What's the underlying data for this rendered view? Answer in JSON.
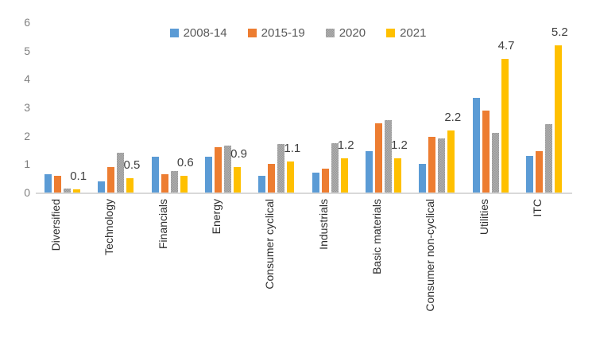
{
  "chart_data": {
    "type": "bar",
    "title": "",
    "xlabel": "",
    "ylabel": "",
    "categories": [
      "Diversified",
      "Technology",
      "Financials",
      "Energy",
      "Consumer cyclical",
      "Industrials",
      "Basic materials",
      "Consumer non-cyclical",
      "Utilities",
      "ITC"
    ],
    "series": [
      {
        "name": "2008-14",
        "color": "#5B9BD5",
        "pattern": false,
        "values": [
          0.65,
          0.4,
          1.25,
          1.25,
          0.6,
          0.7,
          1.45,
          1.0,
          3.35,
          1.3
        ]
      },
      {
        "name": "2015-19",
        "color": "#ED7D31",
        "pattern": false,
        "values": [
          0.6,
          0.9,
          0.65,
          1.6,
          1.0,
          0.85,
          2.45,
          1.95,
          2.9,
          1.45
        ]
      },
      {
        "name": "2020",
        "color": "#A5A5A5",
        "pattern": true,
        "values": [
          0.15,
          1.4,
          0.75,
          1.65,
          1.7,
          1.75,
          2.55,
          1.9,
          2.1,
          2.4
        ]
      },
      {
        "name": "2021",
        "color": "#FFC000",
        "pattern": false,
        "values": [
          0.1,
          0.5,
          0.6,
          0.9,
          1.1,
          1.2,
          1.2,
          2.2,
          4.7,
          5.2
        ],
        "data_labels": [
          "0.1",
          "0.5",
          "0.6",
          "0.9",
          "1.1",
          "1.2",
          "1.2",
          "2.2",
          "4.7",
          "5.2"
        ]
      }
    ],
    "ylim": [
      0,
      6
    ],
    "yticks": [
      0,
      1,
      2,
      3,
      4,
      5,
      6
    ],
    "grid": false,
    "legend_position": "top",
    "bar_orientation": "vertical-grouped",
    "category_labels_rotated": true,
    "axis_line_color": "#d9d9d9",
    "ytick_label_color": "#7f7f7f",
    "category_label_color": "#2e2e2e",
    "data_label_color": "#404040"
  }
}
